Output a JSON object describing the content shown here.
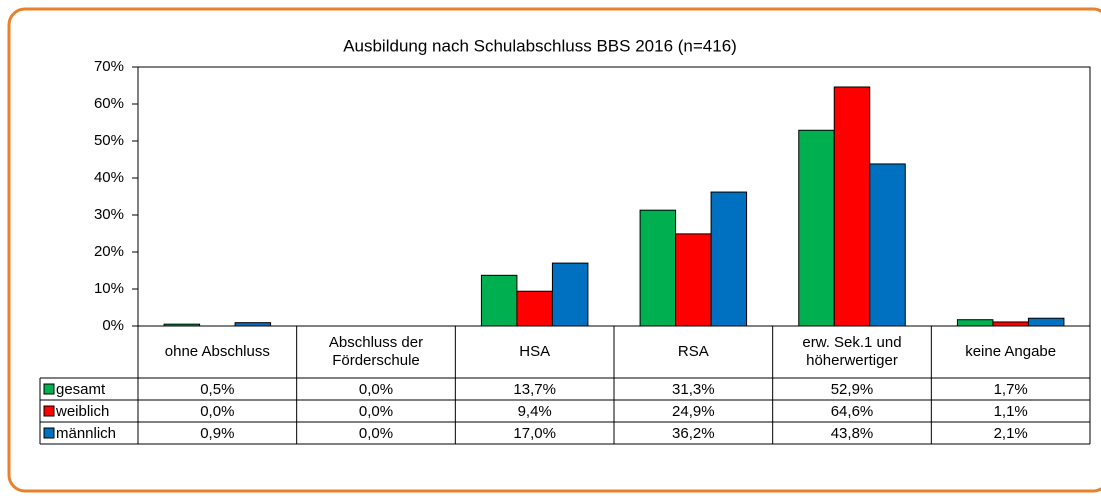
{
  "chart_data": {
    "type": "bar",
    "title": "Ausbildung  nach Schulabschluss BBS 2016 (n=416)",
    "categories": [
      "ohne Abschluss",
      "Abschluss der\nFörderschule",
      "HSA",
      "RSA",
      "erw. Sek.1 und\nhöherwertiger",
      "keine Angabe"
    ],
    "series": [
      {
        "name": "gesamt",
        "color": "#00b050",
        "values": [
          0.5,
          0.0,
          13.7,
          31.3,
          52.9,
          1.7
        ],
        "value_labels": [
          "0,5%",
          "0,0%",
          "13,7%",
          "31,3%",
          "52,9%",
          "1,7%"
        ]
      },
      {
        "name": "weiblich",
        "color": "#ff0000",
        "values": [
          0.0,
          0.0,
          9.4,
          24.9,
          64.6,
          1.1
        ],
        "value_labels": [
          "0,0%",
          "0,0%",
          "9,4%",
          "24,9%",
          "64,6%",
          "1,1%"
        ]
      },
      {
        "name": "männlich",
        "color": "#0070c0",
        "values": [
          0.9,
          0.0,
          17.0,
          36.2,
          43.8,
          2.1
        ],
        "value_labels": [
          "0,9%",
          "0,0%",
          "17,0%",
          "36,2%",
          "43,8%",
          "2,1%"
        ]
      }
    ],
    "ylim": [
      0,
      70
    ],
    "yticks": [
      {
        "value": 0,
        "label": "0%"
      },
      {
        "value": 10,
        "label": "10%"
      },
      {
        "value": 20,
        "label": "20%"
      },
      {
        "value": 30,
        "label": "30%"
      },
      {
        "value": 40,
        "label": "40%"
      },
      {
        "value": 50,
        "label": "50%"
      },
      {
        "value": 60,
        "label": "60%"
      },
      {
        "value": 70,
        "label": "70%"
      }
    ],
    "grid": false
  }
}
